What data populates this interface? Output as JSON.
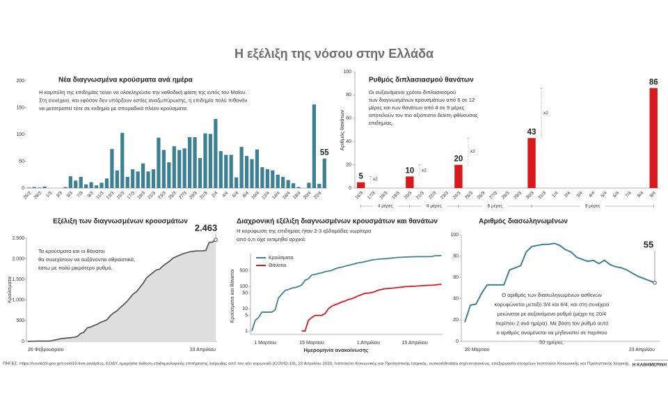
{
  "title": "Η εξέλιξη της νόσου στην Ελλάδα",
  "chart_data": [
    {
      "type": "bar",
      "title": "Νέα διαγνωσμένα κρούσματα ανά ημέρα",
      "text": [
        "Η καμπύλη της επιδημίας τείνει να ολοκληρώσει την καθοδική φάση της εντός του Μαΐου.",
        "Στη συνέχεια, και εφόσον δεν υπάρξουν εστίες αναζωπύρωσης, η επιδημία πολύ πιθανόν",
        "να μετατραπεί τότε σε ενδημία με σποραδικά πλέον κρούσματα."
      ],
      "categories": [
        "26/2",
        null,
        "28/2",
        null,
        "1/3",
        null,
        "3/3",
        null,
        "5/3",
        null,
        "7/3",
        null,
        "9/3",
        null,
        "11/3",
        null,
        "13/3",
        null,
        "15/3",
        null,
        "17/3",
        null,
        "19/3",
        null,
        "21/3",
        null,
        "23/3",
        null,
        "25/3",
        null,
        "27/3",
        null,
        "29/3",
        null,
        "31/3",
        null,
        "2/4",
        null,
        "4/4",
        null,
        "6/4",
        null,
        "8/4",
        null,
        "10/4",
        null,
        "12/4",
        null,
        "14/4",
        null,
        "16/4",
        null,
        "18/4",
        null,
        "20/4",
        null,
        "22/4",
        null
      ],
      "values": [
        1,
        2,
        1,
        3,
        0,
        0,
        0,
        2,
        22,
        14,
        21,
        7,
        11,
        5,
        10,
        18,
        73,
        33,
        103,
        21,
        35,
        31,
        46,
        31,
        35,
        94,
        71,
        48,
        78,
        71,
        74,
        95,
        95,
        56,
        102,
        101,
        129,
        69,
        62,
        62,
        20,
        77,
        60,
        54,
        72,
        39,
        35,
        33,
        25,
        21,
        15,
        9,
        2,
        0,
        10,
        156,
        8,
        55
      ],
      "color": "#3b8193",
      "ylim": [
        0,
        200
      ],
      "yticks": [
        0,
        50,
        100,
        150,
        200
      ]
    },
    {
      "type": "bar",
      "title": "Ρυθμός διπλασιασμού θανάτων",
      "ylabel": "Αριθμός θανάτων",
      "text": [
        "Οι αυξανόμενοι χρόνοι διπλασιασμού",
        "των διαγνωσμένων κρουσμάτων από 6 σε 12",
        "μέρες και των θανάτων από 4 σε 9 μέρες",
        "αποτελούν τον πιο αξιόπιστο δείκτη φθίνουσας",
        "επιδημίας."
      ],
      "categories": [
        "16/3",
        "17/3",
        "18/3",
        "19/3",
        "20/3",
        "21/3",
        "22/3",
        "23/3",
        "24/3",
        "25/3",
        "26/3",
        "27/3",
        "28/3",
        "29/3",
        "30/3",
        "31/3",
        "1/4",
        "2/4",
        "3/4",
        "4/4",
        "5/4",
        "6/4",
        "7/4",
        "8/4",
        "9/4"
      ],
      "values": [
        5,
        null,
        null,
        null,
        10,
        null,
        null,
        null,
        20,
        null,
        null,
        null,
        null,
        null,
        43,
        null,
        null,
        null,
        null,
        null,
        null,
        null,
        null,
        null,
        86
      ],
      "color": "#d7191c",
      "ylim": [
        0,
        100
      ],
      "yticks": [
        0,
        20,
        40,
        60,
        80,
        100
      ],
      "annotations": [
        "x2",
        "x2",
        "x2",
        "x2"
      ],
      "spans": [
        "4 μέρες",
        "4 μέρες",
        "6 μέρες",
        "9 μέρες"
      ]
    },
    {
      "type": "area",
      "title": "Εξέλιξη των διαγνωσμένων κρουσμάτων",
      "ylabel": "Κρούσματα",
      "text": [
        "Τα κρούσματα και οι θάνατοι",
        "θα συνεχίσουν να αυξάνονται αθροιστικά,",
        "έστω με πολύ μικρότερο ρυθμό."
      ],
      "categories": [
        "26 Φεβρουαρίου",
        null,
        null,
        null,
        null,
        null,
        null,
        null,
        null,
        null,
        null,
        null,
        null,
        null,
        null,
        null,
        null,
        null,
        null,
        null,
        null,
        null,
        null,
        null,
        null,
        null,
        null,
        null,
        null,
        null,
        null,
        null,
        null,
        null,
        null,
        null,
        null,
        null,
        null,
        null,
        null,
        null,
        null,
        null,
        null,
        null,
        null,
        null,
        null,
        null,
        null,
        null,
        null,
        null,
        null,
        null,
        null,
        "23 Απριλίου"
      ],
      "values": [
        1,
        3,
        4,
        7,
        7,
        7,
        7,
        9,
        31,
        45,
        66,
        73,
        84,
        89,
        99,
        117,
        190,
        223,
        326,
        347,
        382,
        413,
        459,
        490,
        525,
        619,
        690,
        738,
        816,
        887,
        961,
        1056,
        1151,
        1207,
        1309,
        1410,
        1539,
        1608,
        1670,
        1732,
        1752,
        1829,
        1889,
        1943,
        2015,
        2054,
        2089,
        2122,
        2147,
        2168,
        2183,
        2192,
        2194,
        2194,
        2204,
        2401,
        2408,
        2463
      ],
      "value_labels": [
        null,
        null,
        null,
        null,
        null,
        null,
        null,
        null,
        null,
        null,
        null,
        null,
        null,
        null,
        null,
        null,
        null,
        null,
        null,
        null,
        null,
        null,
        null,
        null,
        null,
        null,
        null,
        null,
        null,
        null,
        null,
        null,
        null,
        null,
        null,
        null,
        null,
        null,
        null,
        null,
        null,
        null,
        null,
        null,
        null,
        null,
        null,
        null,
        null,
        null,
        null,
        null,
        null,
        null,
        null,
        null,
        null,
        "2.463"
      ],
      "color": "#dedede",
      "line_color": "#4a4a4a",
      "label_color": "#3b8193",
      "ylim": [
        0,
        2500
      ],
      "yticks": [
        0,
        500,
        {
          "value": 1000,
          "label": "1.000"
        },
        {
          "value": 1500,
          "label": "1.500"
        },
        {
          "value": 2000,
          "label": "2.000"
        },
        {
          "value": 2500,
          "label": "2.500"
        }
      ]
    },
    {
      "type": "line",
      "title": "Διαχρονική εξέλιξη διαγνωσμένων κρουσμάτων και θανάτων",
      "subtitle": [
        "Η κορύφωση της επιδημίας ήταν 2-3 εβδομάδες νωρίτερα",
        "από ό,τι είχε εκτιμηθεί αρχικά."
      ],
      "ylabel": "Κρούσματα και θάνατοι",
      "xlabel": "Ημερομηνία ανακοίνωσης",
      "ylog": true,
      "legend": "upper left",
      "categories": [
        null,
        null,
        null,
        null,
        "1 Μαρτίου",
        null,
        null,
        null,
        null,
        null,
        null,
        null,
        null,
        null,
        null,
        null,
        null,
        null,
        "15 Μαρτίου",
        null,
        null,
        null,
        null,
        null,
        null,
        null,
        null,
        null,
        null,
        null,
        null,
        null,
        null,
        null,
        null,
        "1 Απριλίου",
        null,
        null,
        null,
        null,
        null,
        null,
        null,
        null,
        null,
        null,
        null,
        null,
        null,
        "15 Απριλίου",
        null,
        null,
        null,
        null,
        null,
        null,
        null,
        null
      ],
      "series": [
        {
          "name": "Κρούσματα",
          "color": "#3b8193",
          "values": [
            1,
            3,
            4,
            7,
            7,
            7,
            7,
            9,
            31,
            45,
            66,
            73,
            84,
            89,
            99,
            117,
            190,
            223,
            326,
            347,
            382,
            413,
            459,
            490,
            525,
            619,
            690,
            738,
            816,
            887,
            961,
            1056,
            1151,
            1207,
            1309,
            1410,
            1539,
            1608,
            1670,
            1732,
            1752,
            1829,
            1889,
            1943,
            2015,
            2054,
            2089,
            2122,
            2147,
            2168,
            2183,
            2192,
            2194,
            2194,
            2204,
            2401,
            2408,
            2463
          ]
        },
        {
          "name": "Θάνατοι",
          "color": "#d7191c",
          "values": [
            null,
            null,
            null,
            null,
            null,
            null,
            null,
            null,
            null,
            null,
            null,
            null,
            null,
            null,
            null,
            1,
            1,
            3,
            4,
            5,
            5,
            5,
            6,
            10,
            13,
            15,
            17,
            20,
            22,
            26,
            28,
            32,
            38,
            43,
            49,
            50,
            53,
            59,
            68,
            73,
            79,
            81,
            83,
            86,
            90,
            93,
            98,
            99,
            101,
            102,
            105,
            108,
            110,
            113,
            114,
            116,
            121,
            125
          ]
        }
      ],
      "ylim": [
        0.7,
        3000
      ],
      "yticks": [
        1,
        5,
        10,
        50,
        100,
        500
      ]
    },
    {
      "type": "line",
      "title": "Αριθμός διασωληνωμένων",
      "text": [
        "Ο αριθμός των διασωληνωμένων ασθενών",
        "κορυφώνεται μεταξύ 3/4 και 6/4, και στη συνέχεια",
        "μειώνεται με αυξανόμενο ρυθμό (μέχρι τις 20/4",
        "περίπου 2 ανά ημέρα). Με βάση τον ρυθμό αυτό",
        "ο αριθμός αναμένεται να μηδενιστεί σε περίπου",
        "50 ημέρες."
      ],
      "categories": [
        "20 Μαρτίου",
        null,
        null,
        null,
        null,
        null,
        null,
        null,
        null,
        null,
        null,
        null,
        null,
        null,
        null,
        null,
        null,
        null,
        null,
        null,
        null,
        null,
        null,
        null,
        null,
        null,
        null,
        null,
        null,
        null,
        null,
        null,
        null,
        null,
        "23 Απριλίου"
      ],
      "values": [
        18,
        34,
        35,
        45,
        53,
        53,
        53,
        53,
        67,
        69,
        71,
        84,
        89,
        90,
        91,
        91,
        92,
        90,
        86,
        84,
        79,
        77,
        75,
        76,
        73,
        76,
        72,
        70,
        69,
        67,
        64,
        61,
        59,
        57,
        55
      ],
      "color": "#3b8193",
      "ylim": [
        0,
        100
      ],
      "yticks": [
        0,
        20,
        40,
        60,
        80,
        100
      ]
    }
  ],
  "footer": {
    "sources": "ΠΗΓΕΣ: https://covid19.gov.gr/covid19-live-analytics, ΕΟΔΥ, ημερήσια έκθεση επιδημιολογικής επιτήρησης λοίμωξης από τον νέο κορωνοϊό (COVID-19), 22 Απριλίου 2020, Ινστιτούτο Κοινωνικής και Προληπτικής Ιατρικής, ourworldindata.org/coronavirus, επεξεργασία στοιχείων Ινστιτούτο Κοινωνικής και Προληπτικής Ιατρικής",
    "brand": "Η ΚΑΘΗΜΕΡΙΝΗ"
  }
}
